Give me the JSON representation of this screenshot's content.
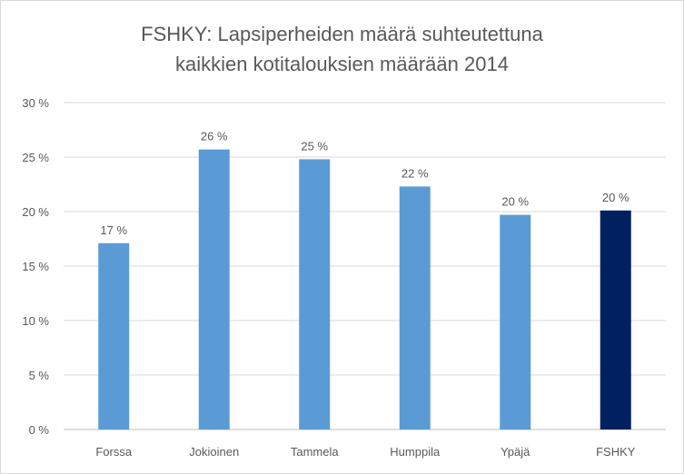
{
  "chart_data": {
    "type": "bar",
    "title_lines": [
      "FSHKY: Lapsiperheiden määrä suhteutettuna",
      "kaikkien kotitalouksien määrään 2014"
    ],
    "categories": [
      "Forssa",
      "Jokioinen",
      "Tammela",
      "Humppila",
      "Ypäjä",
      "FSHKY"
    ],
    "values": [
      17.1,
      25.7,
      24.8,
      22.3,
      19.7,
      20.1
    ],
    "data_labels": [
      "17 %",
      "26 %",
      "25 %",
      "22 %",
      "20 %",
      "20 %"
    ],
    "y_ticks": [
      "0 %",
      "5 %",
      "10 %",
      "15 %",
      "20 %",
      "25 %",
      "30 %"
    ],
    "ylim": [
      0,
      30
    ],
    "gridlines": true,
    "legend": "none",
    "colors": [
      "#5b9bd5",
      "#5b9bd5",
      "#5b9bd5",
      "#5b9bd5",
      "#5b9bd5",
      "#002060"
    ]
  }
}
